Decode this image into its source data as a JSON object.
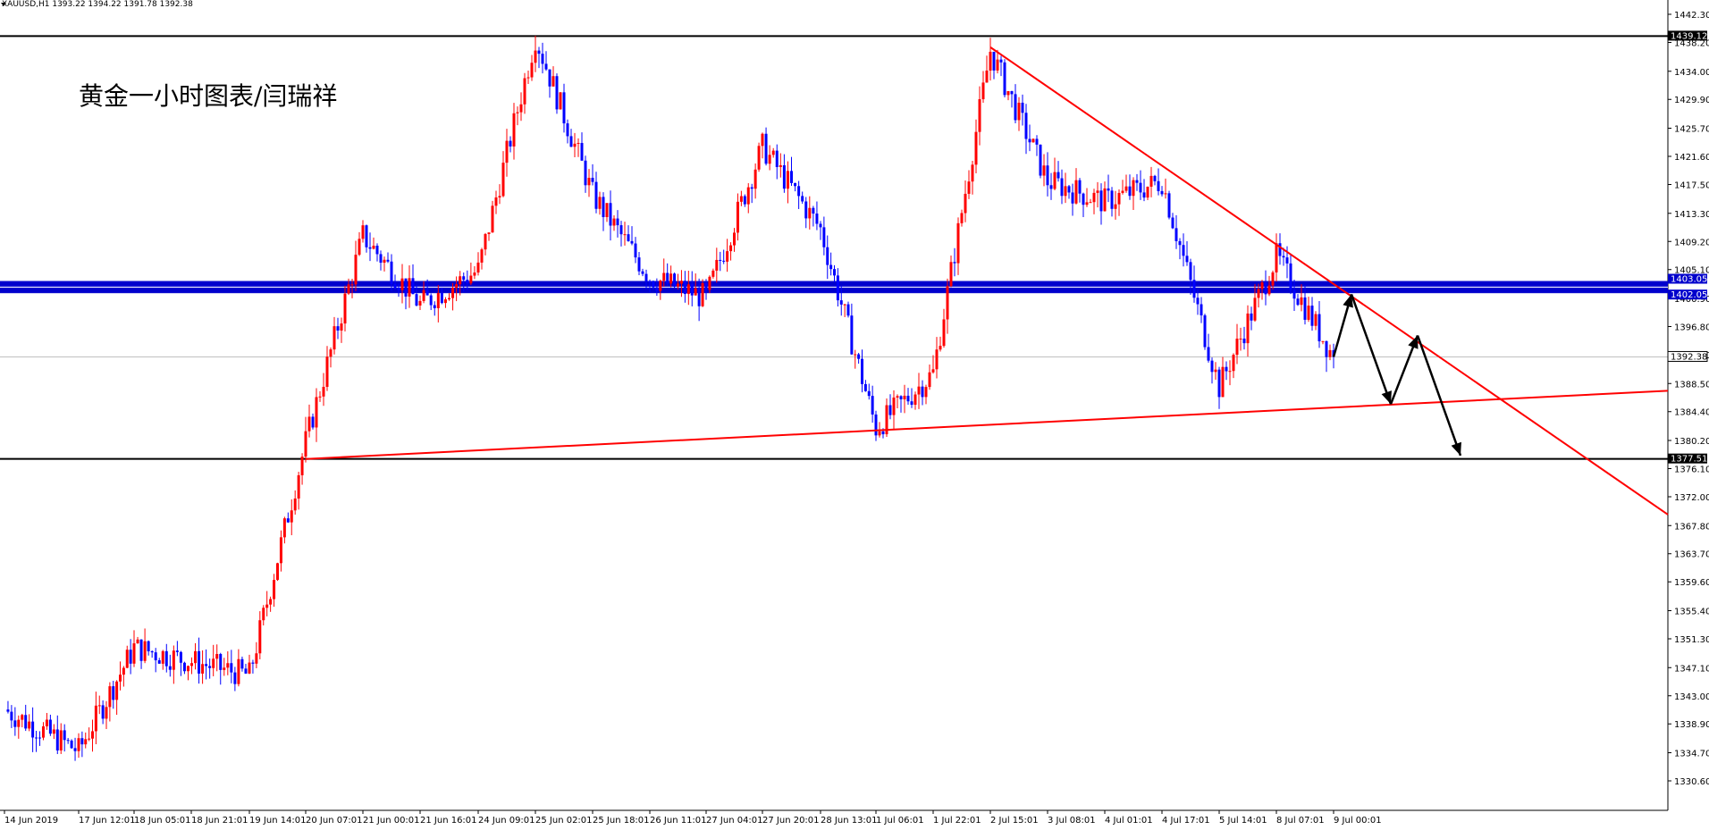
{
  "header": {
    "symbol_line": "XAUUSD,H1  1393.22 1394.22 1391.78 1392.38"
  },
  "chart_title": "黄金一小时图表/闫瑞祥",
  "colors": {
    "bull": "#ff0000",
    "bear": "#0000ff",
    "trendline": "#ff0000",
    "support_band": "#0000cc",
    "arrow": "#000000",
    "background": "#ffffff"
  },
  "chart_data": {
    "type": "candlestick",
    "symbol": "XAUUSD",
    "timeframe": "H1",
    "ohlc_last": {
      "open": 1393.22,
      "high": 1394.22,
      "low": 1391.78,
      "close": 1392.38
    },
    "ylim": [
      1330.6,
      1442.3
    ],
    "y_ticks": [
      "1442.30",
      "1438.20",
      "1434.00",
      "1429.90",
      "1425.70",
      "1421.60",
      "1417.50",
      "1413.30",
      "1409.20",
      "1405.10",
      "1400.90",
      "1396.80",
      "1392.70",
      "1388.50",
      "1384.40",
      "1380.20",
      "1376.10",
      "1372.00",
      "1367.80",
      "1363.70",
      "1359.60",
      "1355.40",
      "1351.30",
      "1347.10",
      "1343.00",
      "1338.90",
      "1334.70",
      "1330.60"
    ],
    "x_ticks": [
      "14 Jun 2019",
      "17 Jun 12:01",
      "18 Jun 05:01",
      "18 Jun 21:01",
      "19 Jun 14:01",
      "20 Jun 07:01",
      "21 Jun 00:01",
      "21 Jun 16:01",
      "24 Jun 09:01",
      "25 Jun 02:01",
      "25 Jun 18:01",
      "26 Jun 11:01",
      "27 Jun 04:01",
      "27 Jun 20:01",
      "28 Jun 13:01",
      "1 Jul 06:01",
      "1 Jul 22:01",
      "2 Jul 15:01",
      "3 Jul 08:01",
      "4 Jul 01:01",
      "4 Jul 17:01",
      "5 Jul 14:01",
      "8 Jul 07:01",
      "9 Jul 00:01"
    ],
    "key_points": [
      {
        "x": "14 Jun 2019",
        "y": 1341
      },
      {
        "x": "17 Jun 12:01",
        "y": 1335
      },
      {
        "x": "18 Jun 05:01",
        "y": 1350
      },
      {
        "x": "19 Jun 14:01",
        "y": 1346
      },
      {
        "x": "20 Jun 07:01",
        "y": 1380
      },
      {
        "x": "21 Jun 00:01",
        "y": 1410
      },
      {
        "x": "21 Jun 16:01",
        "y": 1400
      },
      {
        "x": "24 Jun 09:01",
        "y": 1405
      },
      {
        "x": "25 Jun 02:01",
        "y": 1439
      },
      {
        "x": "25 Jun 18:01",
        "y": 1416
      },
      {
        "x": "26 Jun 11:01",
        "y": 1404
      },
      {
        "x": "27 Jun 04:01",
        "y": 1401
      },
      {
        "x": "27 Jun 20:01",
        "y": 1423
      },
      {
        "x": "28 Jun 13:01",
        "y": 1411
      },
      {
        "x": "1 Jul 06:01",
        "y": 1382
      },
      {
        "x": "1 Jul 22:01",
        "y": 1390
      },
      {
        "x": "2 Jul 15:01",
        "y": 1437
      },
      {
        "x": "3 Jul 08:01",
        "y": 1418
      },
      {
        "x": "4 Jul 01:01",
        "y": 1415
      },
      {
        "x": "4 Jul 17:01",
        "y": 1418
      },
      {
        "x": "5 Jul 14:01",
        "y": 1388
      },
      {
        "x": "8 Jul 07:01",
        "y": 1407
      },
      {
        "x": "9 Jul 00:01",
        "y": 1392.38
      }
    ],
    "horizontal_lines": [
      {
        "price": 1439.12,
        "label": "1439.12",
        "color": "#000000"
      },
      {
        "price": 1403.05,
        "label": "1403.05",
        "color": "#0000cc"
      },
      {
        "price": 1402.05,
        "label": "1402.05",
        "color": "#0000cc"
      },
      {
        "price": 1392.38,
        "label": "1392.38",
        "color": "#c0c0c0"
      },
      {
        "price": 1377.51,
        "label": "1377.51",
        "color": "#000000"
      }
    ],
    "trendlines": [
      {
        "name": "descending-resistance",
        "from": {
          "x": "2 Jul 15:01",
          "y": 1437.5
        },
        "to": {
          "x": "9 Jul 00:01",
          "y": 1403
        }
      },
      {
        "name": "ascending-support",
        "from": {
          "x": "20 Jun 07:01",
          "y": 1377.5
        },
        "to": {
          "x": "9 Jul 00:01",
          "y": 1385
        }
      }
    ],
    "projection_arrows": [
      {
        "y": 1392.38
      },
      {
        "y": 1401.5
      },
      {
        "y": 1385.5
      },
      {
        "y": 1395.5
      },
      {
        "y": 1378
      }
    ]
  }
}
